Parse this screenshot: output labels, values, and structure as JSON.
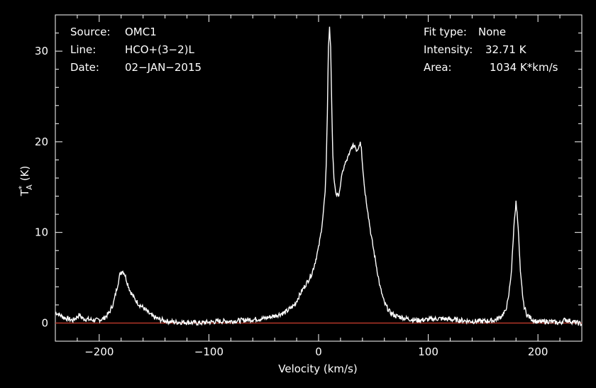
{
  "header_left": {
    "source_label": "Source:",
    "source_value": "OMC1",
    "line_label": "Line:",
    "line_value": "HCO+(3−2)L",
    "date_label": "Date:",
    "date_value": "02−JAN−2015"
  },
  "header_right": {
    "fit_label": "Fit type:",
    "fit_value": "None",
    "intensity_label": "Intensity:",
    "intensity_value": "32.71 K",
    "area_label": "Area:",
    "area_value": "1034 K*km/s"
  },
  "colors": {
    "background": "#000000",
    "foreground": "#ffffff",
    "baseline": "#c0392b"
  },
  "chart_data": {
    "type": "line",
    "xlabel": "Velocity (km/s)",
    "ylabel_main": "T",
    "ylabel_sup": "*",
    "ylabel_sub": "A",
    "ylabel_unit": "(K)",
    "xlim": [
      -240,
      240
    ],
    "ylim": [
      -2,
      34
    ],
    "x_ticks": [
      -200,
      -100,
      0,
      100,
      200
    ],
    "x_tick_labels": [
      "−200",
      "−100",
      "0",
      "100",
      "200"
    ],
    "y_ticks": [
      0,
      10,
      20,
      30
    ],
    "y_tick_labels": [
      "0",
      "10",
      "20",
      "30"
    ],
    "baseline_y": 0,
    "grid": false,
    "series": [
      {
        "x": [
          -240,
          -232,
          -224,
          -218,
          -215,
          -210,
          -202,
          -196,
          -191,
          -187,
          -184,
          -181,
          -179,
          -177,
          -175,
          -172,
          -168,
          -164,
          -159,
          -155,
          -151,
          -145,
          -138,
          -130,
          -120,
          -110,
          -100,
          -90,
          -80,
          -70,
          -60,
          -50,
          -40,
          -30,
          -22,
          -15,
          -10,
          -6,
          -3,
          0,
          2,
          4,
          6,
          7,
          8,
          9,
          10,
          11,
          12,
          13,
          14,
          16,
          18,
          20,
          22,
          25,
          28,
          30,
          33,
          35,
          37,
          38,
          39,
          40,
          42,
          45,
          48,
          52,
          56,
          60,
          65,
          70,
          80,
          90,
          100,
          110,
          120,
          130,
          140,
          150,
          160,
          165,
          170,
          173,
          176,
          178,
          180,
          182,
          184,
          187,
          190,
          195,
          200,
          210,
          220,
          225,
          230,
          240
        ],
        "y": [
          1.2,
          0.6,
          0.3,
          0.9,
          0.5,
          0.4,
          0.3,
          0.5,
          1.1,
          2.2,
          3.8,
          5.4,
          5.8,
          5.5,
          4.7,
          3.6,
          2.7,
          2.1,
          1.6,
          1.1,
          0.7,
          0.4,
          0.2,
          0.1,
          0.1,
          0.0,
          0.1,
          0.2,
          0.2,
          0.3,
          0.4,
          0.5,
          0.8,
          1.2,
          2.0,
          3.6,
          4.6,
          5.5,
          6.8,
          8.3,
          9.8,
          11.8,
          14.5,
          17.5,
          23.0,
          30.5,
          32.7,
          30.5,
          24.0,
          18.5,
          16.0,
          14.2,
          14.0,
          15.2,
          16.8,
          17.8,
          18.6,
          19.4,
          19.6,
          19.0,
          19.6,
          20.0,
          19.4,
          17.5,
          14.8,
          12.2,
          9.6,
          6.8,
          4.0,
          2.2,
          1.2,
          0.8,
          0.5,
          0.3,
          0.4,
          0.5,
          0.4,
          0.3,
          0.2,
          0.2,
          0.3,
          0.6,
          1.2,
          2.6,
          6.0,
          10.5,
          13.5,
          10.5,
          5.5,
          2.0,
          0.9,
          0.4,
          0.1,
          0.2,
          0.0,
          0.4,
          0.2,
          -0.1
        ]
      }
    ]
  }
}
